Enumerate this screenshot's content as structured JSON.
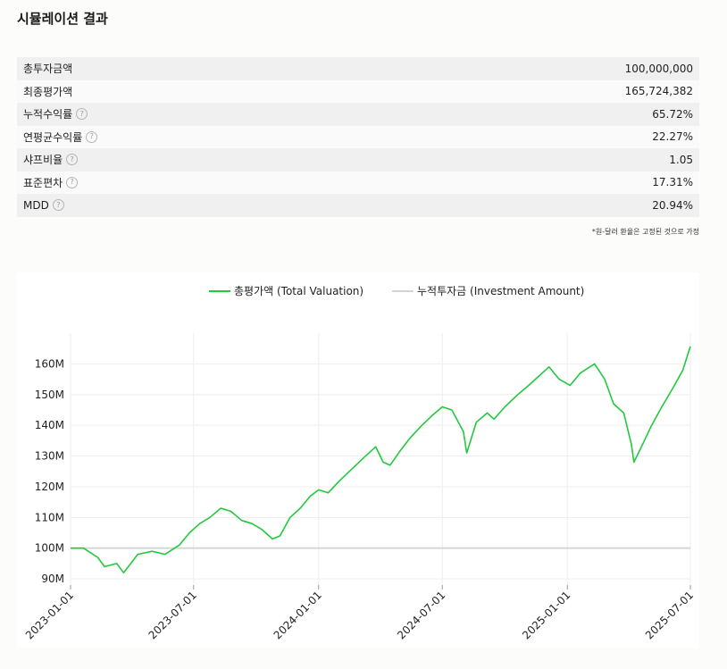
{
  "page": {
    "title": "시뮬레이션 결과"
  },
  "stats": [
    {
      "label": "총투자금액",
      "value": "100,000,000",
      "help": false
    },
    {
      "label": "최종평가액",
      "value": "165,724,382",
      "help": false
    },
    {
      "label": "누적수익률",
      "value": "65.72%",
      "help": true
    },
    {
      "label": "연평균수익률",
      "value": "22.27%",
      "help": true
    },
    {
      "label": "샤프비율",
      "value": "1.05",
      "help": true
    },
    {
      "label": "표준편차",
      "value": "17.31%",
      "help": true
    },
    {
      "label": "MDD",
      "value": "20.94%",
      "help": true
    }
  ],
  "help_glyph": "?",
  "note": "*원-달러 환율은 고정된 것으로 가정",
  "chart_data": {
    "type": "line",
    "grid": true,
    "legend_position": "top-center",
    "x_ticks": [
      "2023-01-01",
      "2023-07-01",
      "2024-01-01",
      "2024-07-01",
      "2025-01-01",
      "2025-07-01"
    ],
    "x_range": [
      "2023-01-01",
      "2025-07-01"
    ],
    "y_ticks": [
      90,
      100,
      110,
      120,
      130,
      140,
      150,
      160
    ],
    "y_tick_labels": [
      "90M",
      "100M",
      "110M",
      "120M",
      "130M",
      "140M",
      "150M",
      "160M"
    ],
    "ylim": [
      88,
      170
    ],
    "y_unit": "M",
    "series": [
      {
        "name": "총평가액 (Total Valuation)",
        "color": "#22c93d",
        "points": [
          [
            "2023-01-01",
            100
          ],
          [
            "2023-01-20",
            100
          ],
          [
            "2023-02-10",
            97
          ],
          [
            "2023-02-20",
            94
          ],
          [
            "2023-03-10",
            95
          ],
          [
            "2023-03-20",
            92
          ],
          [
            "2023-04-10",
            98
          ],
          [
            "2023-05-01",
            99
          ],
          [
            "2023-05-20",
            98
          ],
          [
            "2023-06-10",
            101
          ],
          [
            "2023-06-25",
            105
          ],
          [
            "2023-07-10",
            108
          ],
          [
            "2023-07-25",
            110
          ],
          [
            "2023-08-10",
            113
          ],
          [
            "2023-08-25",
            112
          ],
          [
            "2023-09-10",
            109
          ],
          [
            "2023-09-25",
            108
          ],
          [
            "2023-10-10",
            106
          ],
          [
            "2023-10-25",
            103
          ],
          [
            "2023-11-05",
            104
          ],
          [
            "2023-11-20",
            110
          ],
          [
            "2023-12-05",
            113
          ],
          [
            "2023-12-20",
            117
          ],
          [
            "2024-01-01",
            119
          ],
          [
            "2024-01-15",
            118
          ],
          [
            "2024-02-01",
            122
          ],
          [
            "2024-02-20",
            126
          ],
          [
            "2024-03-10",
            130
          ],
          [
            "2024-03-25",
            133
          ],
          [
            "2024-04-05",
            128
          ],
          [
            "2024-04-15",
            127
          ],
          [
            "2024-05-01",
            132
          ],
          [
            "2024-05-15",
            136
          ],
          [
            "2024-06-01",
            140
          ],
          [
            "2024-06-15",
            143
          ],
          [
            "2024-07-01",
            146
          ],
          [
            "2024-07-15",
            145
          ],
          [
            "2024-08-01",
            138
          ],
          [
            "2024-08-06",
            131
          ],
          [
            "2024-08-20",
            141
          ],
          [
            "2024-09-05",
            144
          ],
          [
            "2024-09-15",
            142
          ],
          [
            "2024-10-01",
            146
          ],
          [
            "2024-10-20",
            150
          ],
          [
            "2024-11-05",
            153
          ],
          [
            "2024-11-20",
            156
          ],
          [
            "2024-12-05",
            159
          ],
          [
            "2024-12-20",
            155
          ],
          [
            "2025-01-05",
            153
          ],
          [
            "2025-01-20",
            157
          ],
          [
            "2025-02-10",
            160
          ],
          [
            "2025-02-25",
            155
          ],
          [
            "2025-03-10",
            147
          ],
          [
            "2025-03-25",
            144
          ],
          [
            "2025-04-05",
            134
          ],
          [
            "2025-04-09",
            128
          ],
          [
            "2025-04-20",
            133
          ],
          [
            "2025-05-05",
            140
          ],
          [
            "2025-05-20",
            146
          ],
          [
            "2025-06-05",
            152
          ],
          [
            "2025-06-20",
            158
          ],
          [
            "2025-07-01",
            165.7
          ]
        ]
      },
      {
        "name": "누적투자금 (Investment Amount)",
        "color": "#d4d4d4",
        "points": [
          [
            "2023-01-01",
            100
          ],
          [
            "2025-07-01",
            100
          ]
        ]
      }
    ]
  }
}
